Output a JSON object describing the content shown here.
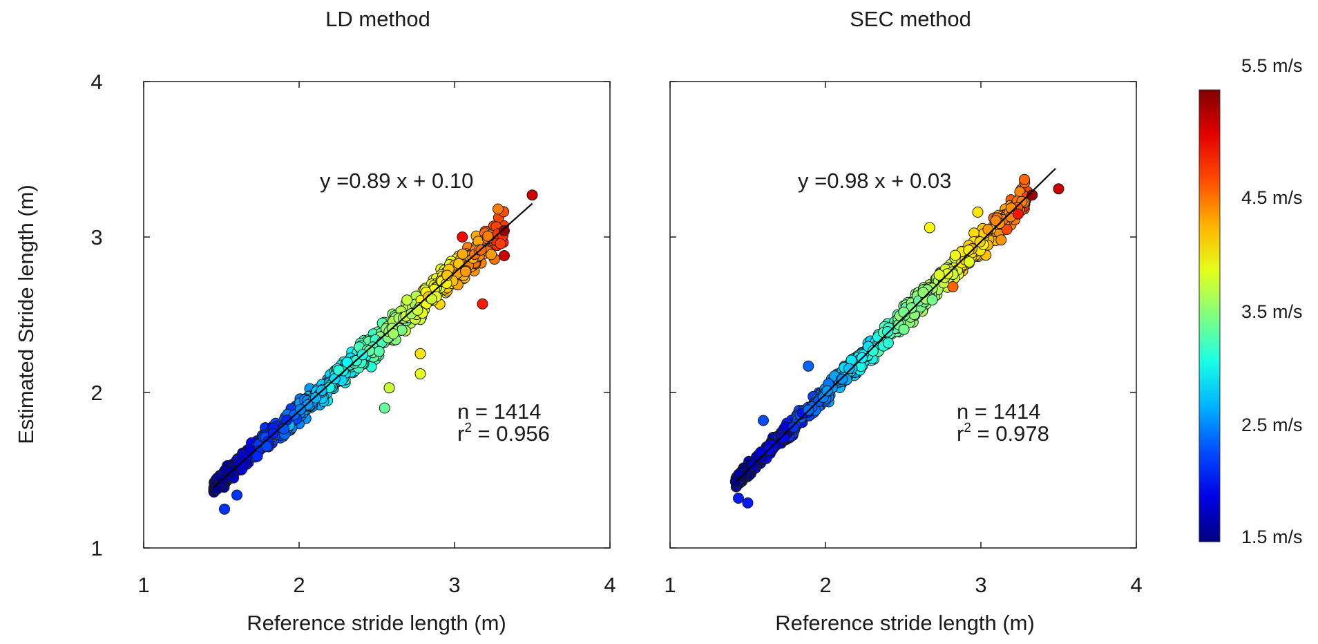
{
  "chart_data": {
    "type": "scatter",
    "y_axis_label": "Estimated Stride length (m)",
    "x_axis_label": "Reference stride length (m)",
    "colorbar": {
      "label_unit": "m/s",
      "range": [
        1.5,
        5.5
      ],
      "labels": [
        "5.5 m/s",
        "4.5 m/s",
        "3.5 m/s",
        "2.5 m/s",
        "1.5 m/s"
      ],
      "label_values": [
        5.5,
        4.5,
        3.5,
        2.5,
        1.5
      ],
      "colormap": "jet"
    },
    "panels": [
      {
        "title": "LD method",
        "xlim": [
          1,
          4
        ],
        "ylim": [
          1,
          4
        ],
        "x_ticks": [
          "1",
          "2",
          "3",
          "4"
        ],
        "y_ticks": [
          "1",
          "2",
          "3",
          "4"
        ],
        "fit": {
          "slope": 0.89,
          "intercept": 0.1,
          "x_range": [
            1.45,
            3.5
          ]
        },
        "equation": "y =0.89 x + 0.10",
        "n_text": "n = 1414",
        "r2_prefix": "r",
        "r2_sup": "2",
        "r2_value": " = 0.956",
        "n": 1414,
        "r2": 0.956,
        "notable_points": [
          {
            "x": 3.5,
            "y": 3.27,
            "speed": 5.2
          },
          {
            "x": 3.32,
            "y": 3.04,
            "speed": 5.4
          },
          {
            "x": 3.32,
            "y": 2.88,
            "speed": 5.2
          },
          {
            "x": 3.18,
            "y": 2.57,
            "speed": 4.9
          },
          {
            "x": 3.28,
            "y": 3.18,
            "speed": 4.5
          },
          {
            "x": 2.55,
            "y": 1.9,
            "speed": 3.4
          },
          {
            "x": 2.58,
            "y": 2.03,
            "speed": 3.8
          },
          {
            "x": 2.78,
            "y": 2.12,
            "speed": 3.9
          },
          {
            "x": 2.78,
            "y": 2.25,
            "speed": 4.1
          },
          {
            "x": 1.52,
            "y": 1.25,
            "speed": 2.2
          },
          {
            "x": 1.6,
            "y": 1.34,
            "speed": 2.2
          },
          {
            "x": 3.05,
            "y": 3.0,
            "speed": 5.0
          }
        ]
      },
      {
        "title": "SEC method",
        "xlim": [
          1,
          4
        ],
        "ylim": [
          1,
          4
        ],
        "x_ticks": [
          "1",
          "2",
          "3",
          "4"
        ],
        "y_ticks": [
          "1",
          "2",
          "3",
          "4"
        ],
        "fit": {
          "slope": 0.98,
          "intercept": 0.03,
          "x_range": [
            1.42,
            3.48
          ]
        },
        "equation": "y =0.98 x + 0.03",
        "n_text": "n = 1414",
        "r2_prefix": "r",
        "r2_sup": "2",
        "r2_value": " = 0.978",
        "n": 1414,
        "r2": 0.978,
        "notable_points": [
          {
            "x": 3.5,
            "y": 3.31,
            "speed": 5.2
          },
          {
            "x": 3.33,
            "y": 3.27,
            "speed": 5.4
          },
          {
            "x": 3.28,
            "y": 3.37,
            "speed": 4.6
          },
          {
            "x": 1.89,
            "y": 2.17,
            "speed": 2.4
          },
          {
            "x": 1.6,
            "y": 1.82,
            "speed": 2.3
          },
          {
            "x": 2.67,
            "y": 3.06,
            "speed": 4.0
          },
          {
            "x": 2.98,
            "y": 3.16,
            "speed": 4.1
          },
          {
            "x": 1.5,
            "y": 1.29,
            "speed": 2.1
          },
          {
            "x": 1.44,
            "y": 1.32,
            "speed": 2.1
          },
          {
            "x": 2.82,
            "y": 2.68,
            "speed": 4.6
          }
        ]
      }
    ]
  }
}
